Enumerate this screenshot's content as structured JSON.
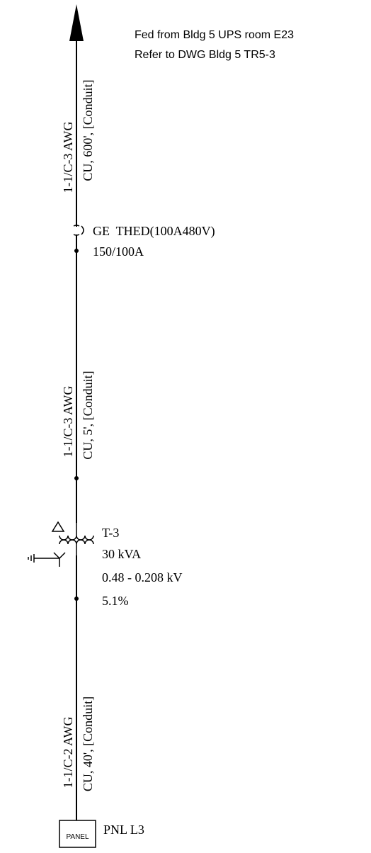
{
  "source_note": {
    "line1": "Fed from Bldg 5 UPS room E23",
    "line2": "Refer to DWG Bldg 5 TR5-3"
  },
  "cable_1": {
    "line1": "1-1/C-3 AWG",
    "line2": "CU, 600', [Conduit]"
  },
  "breaker": {
    "name": "GE  THED(100A480V)",
    "rating": "150/100A"
  },
  "cable_2": {
    "line1": "1-1/C-3 AWG",
    "line2": "CU, 5', [Conduit]"
  },
  "transformer": {
    "name": "T-3",
    "rating": "30 kVA",
    "voltage": "0.48 - 0.208 kV",
    "impedance": "5.1%"
  },
  "cable_3": {
    "line1": "1-1/C-2 AWG",
    "line2": "CU, 40', [Conduit]"
  },
  "panel": {
    "box_label": "PANEL",
    "name": "PNL L3"
  }
}
